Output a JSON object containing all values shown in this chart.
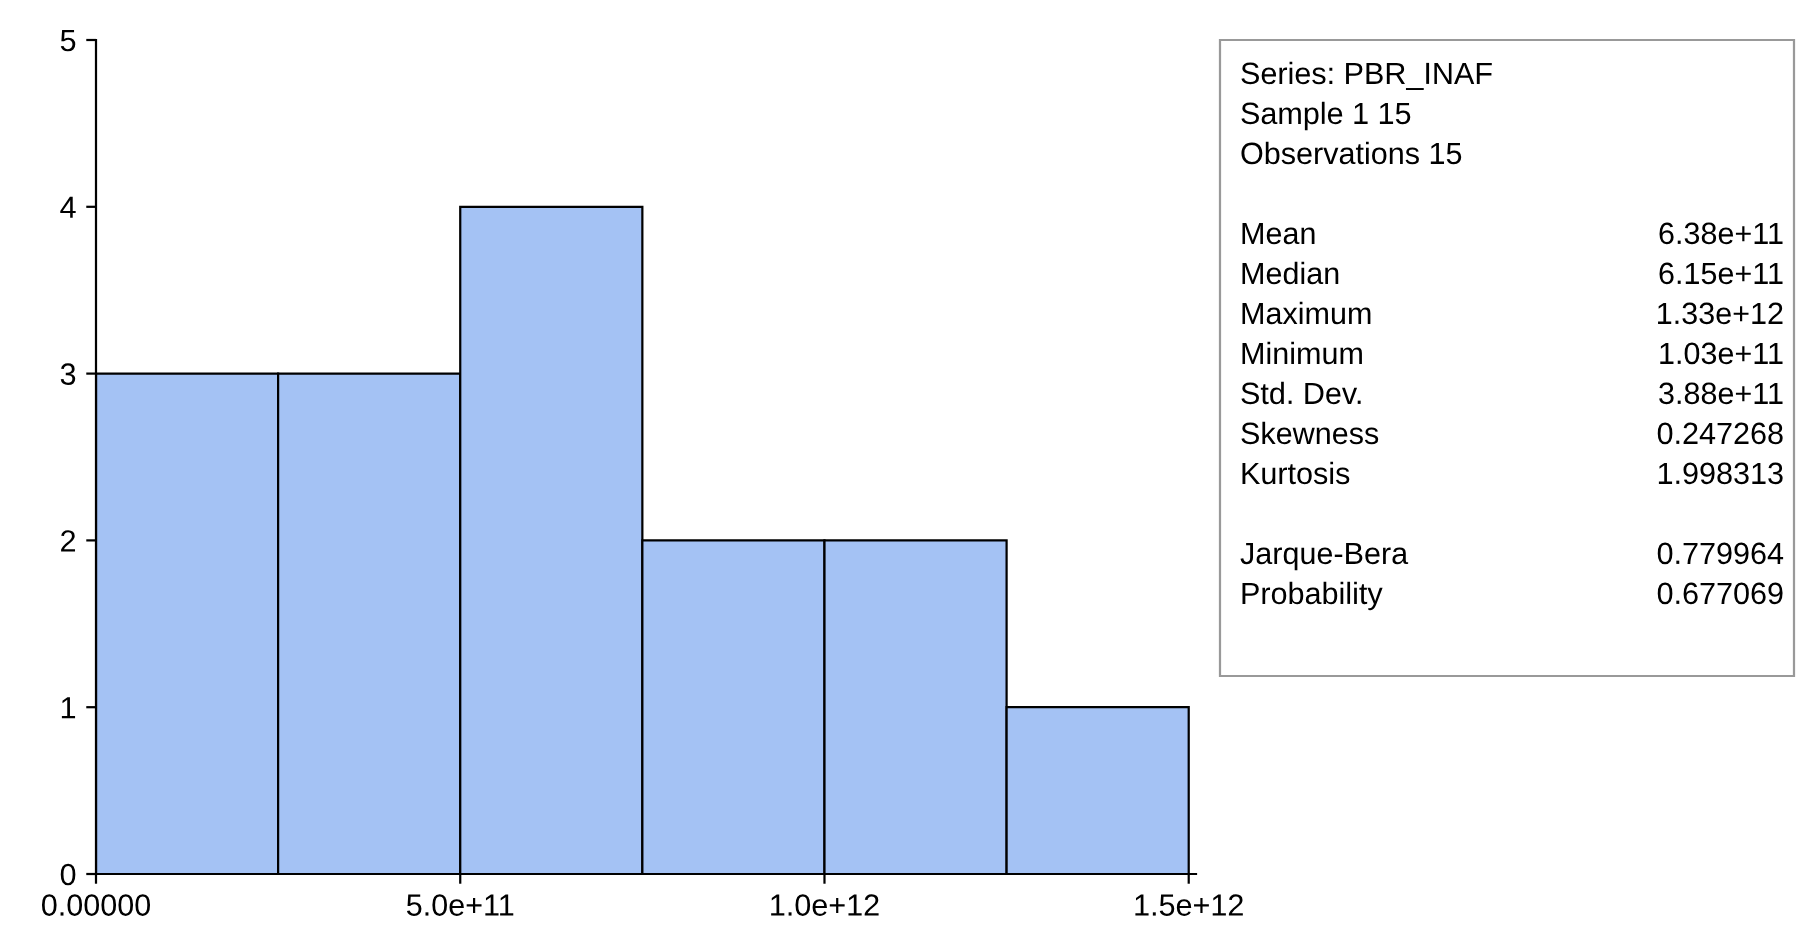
{
  "chart_data": {
    "type": "histogram",
    "bins": [
      0,
      250000000000,
      500000000000,
      750000000000,
      1000000000000,
      1250000000000,
      1500000000000
    ],
    "values": [
      3,
      3,
      4,
      2,
      2,
      1
    ],
    "color": "#a4c2f4",
    "xlim": [
      0,
      1510000000000
    ],
    "xticks": [
      {
        "value": 0,
        "label": "0.00000"
      },
      {
        "value": 500000000000,
        "label": "5.0e+11"
      },
      {
        "value": 1000000000000,
        "label": "1.0e+12"
      },
      {
        "value": 1500000000000,
        "label": "1.5e+12"
      }
    ],
    "ylim": [
      0,
      5
    ],
    "yticks": [
      0,
      1,
      2,
      3,
      4,
      5
    ],
    "grid": false,
    "annotations": [
      "Series: PBR_INAF",
      "Sample 1 15",
      "Observations 15",
      "Mean\t6.38e+11",
      "Median\t6.15e+11",
      "Maximum\t1.33e+12",
      "Minimum\t1.03e+11",
      "Std. Dev.\t3.88e+11",
      "Skewness\t0.247268",
      "Kurtosis\t1.998313",
      "Jarque-Bera\t0.779964",
      "Probability\t0.677069"
    ]
  }
}
